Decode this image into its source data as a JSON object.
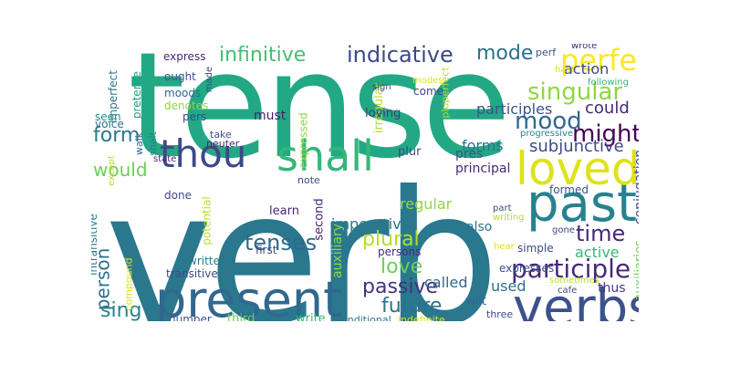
{
  "words": [
    {
      "text": "verb",
      "color": "#2a788e"
    },
    {
      "text": "tense",
      "color": "#22a884"
    },
    {
      "text": "present",
      "color": "#31688e"
    },
    {
      "text": "verbs",
      "color": "#3b528b"
    },
    {
      "text": "past",
      "color": "#26828e"
    },
    {
      "text": "loved",
      "color": "#dde318"
    },
    {
      "text": "thou",
      "color": "#3e4989"
    },
    {
      "text": "shall",
      "color": "#35b779"
    },
    {
      "text": "participle",
      "color": "#482878"
    },
    {
      "text": "perfect",
      "color": "#fde725"
    },
    {
      "text": "infinitive",
      "color": "#43bf71"
    },
    {
      "text": "indicative",
      "color": "#3e4989"
    },
    {
      "text": "singular",
      "color": "#90d743"
    },
    {
      "text": "mood",
      "color": "#31688e"
    },
    {
      "text": "mode",
      "color": "#2d708e"
    },
    {
      "text": "form",
      "color": "#2a788e"
    },
    {
      "text": "might",
      "color": "#440154"
    },
    {
      "text": "could",
      "color": "#482878"
    },
    {
      "text": "would",
      "color": "#6ece58"
    },
    {
      "text": "subjunctive",
      "color": "#3e4989"
    },
    {
      "text": "time",
      "color": "#482878"
    },
    {
      "text": "tenses",
      "color": "#31688e"
    },
    {
      "text": "plural",
      "color": "#b5de2b"
    },
    {
      "text": "love",
      "color": "#6ece58"
    },
    {
      "text": "passive",
      "color": "#46327e"
    },
    {
      "text": "future",
      "color": "#2d708e"
    },
    {
      "text": "person",
      "color": "#2d708e"
    },
    {
      "text": "sing",
      "color": "#25848e"
    },
    {
      "text": "imperative",
      "color": "#2a788e"
    },
    {
      "text": "regular",
      "color": "#90d743"
    },
    {
      "text": "forms",
      "color": "#2c728e"
    },
    {
      "text": "pres",
      "color": "#3b528b"
    },
    {
      "text": "principal",
      "color": "#482878"
    },
    {
      "text": "action",
      "color": "#3e4989"
    },
    {
      "text": "active",
      "color": "#35b779"
    },
    {
      "text": "participles",
      "color": "#3b528b"
    },
    {
      "text": "conjugation",
      "color": "#3e4989"
    },
    {
      "text": "used",
      "color": "#2d708e"
    },
    {
      "text": "thus",
      "color": "#443983"
    },
    {
      "text": "called",
      "color": "#31688e"
    },
    {
      "text": "also",
      "color": "#2c728e"
    },
    {
      "text": "auxiliary",
      "color": "#90d743"
    },
    {
      "text": "auxiliaries",
      "color": "#6ece58"
    },
    {
      "text": "second",
      "color": "#482878"
    },
    {
      "text": "irregular",
      "color": "#b5de2b"
    },
    {
      "text": "expressed",
      "color": "#90d743"
    },
    {
      "text": "imperfect",
      "color": "#2a788e"
    },
    {
      "text": "preterite",
      "color": "#1fa088"
    },
    {
      "text": "express",
      "color": "#482878"
    },
    {
      "text": "ought",
      "color": "#3b528b"
    },
    {
      "text": "moods",
      "color": "#31688e"
    },
    {
      "text": "denotes",
      "color": "#90d743"
    },
    {
      "text": "pers",
      "color": "#3e4989"
    },
    {
      "text": "must",
      "color": "#481f70"
    },
    {
      "text": "loving",
      "color": "#443983"
    },
    {
      "text": "come",
      "color": "#3e4989"
    },
    {
      "text": "voice",
      "color": "#2c728e"
    },
    {
      "text": "seen",
      "color": "#21918c"
    },
    {
      "text": "neuter",
      "color": "#482878"
    },
    {
      "text": "take",
      "color": "#3b528b"
    },
    {
      "text": "walk",
      "color": "#31688e"
    },
    {
      "text": "shalt",
      "color": "#26828e"
    },
    {
      "text": "made",
      "color": "#3e4989"
    },
    {
      "text": "state",
      "color": "#482878"
    },
    {
      "text": "except",
      "color": "#b5de2b"
    },
    {
      "text": "done",
      "color": "#3e4989"
    },
    {
      "text": "potential",
      "color": "#b5de2b"
    },
    {
      "text": "learn",
      "color": "#482878"
    },
    {
      "text": "first",
      "color": "#3e4989"
    },
    {
      "text": "written",
      "color": "#2a788e"
    },
    {
      "text": "transitive",
      "color": "#3e4989"
    },
    {
      "text": "number",
      "color": "#3b528b"
    },
    {
      "text": "third",
      "color": "#6ece58"
    },
    {
      "text": "write",
      "color": "#35b779"
    },
    {
      "text": "conditional",
      "color": "#2c728e"
    },
    {
      "text": "indefinite",
      "color": "#dde318"
    },
    {
      "text": "intransitive",
      "color": "#2a788e"
    },
    {
      "text": "compound",
      "color": "#dde318"
    },
    {
      "text": "note",
      "color": "#3e4989"
    },
    {
      "text": "persons",
      "color": "#482878"
    },
    {
      "text": "plur",
      "color": "#3e4989"
    },
    {
      "text": "wilt",
      "color": "#31688e"
    },
    {
      "text": "three",
      "color": "#3e4989"
    },
    {
      "text": "formed",
      "color": "#3b528b"
    },
    {
      "text": "expresses",
      "color": "#3b528b"
    },
    {
      "text": "progressive",
      "color": "#26828e"
    },
    {
      "text": "pluperfect",
      "color": "#b5de2b"
    },
    {
      "text": "perf",
      "color": "#3b528b"
    },
    {
      "text": "wrote",
      "color": "#482878"
    },
    {
      "text": "hast",
      "color": "#dde318"
    },
    {
      "text": "following",
      "color": "#35b779"
    },
    {
      "text": "sign",
      "color": "#3e4989"
    },
    {
      "text": "modes",
      "color": "#dde318"
    },
    {
      "text": "part",
      "color": "#3e4989"
    },
    {
      "text": "writing",
      "color": "#b5de2b"
    },
    {
      "text": "hear",
      "color": "#dde318"
    },
    {
      "text": "gone",
      "color": "#3e4989"
    },
    {
      "text": "sometimes",
      "color": "#b5de2b"
    },
    {
      "text": "cafe",
      "color": "#3e4989"
    },
    {
      "text": "simple",
      "color": "#3e4989"
    }
  ]
}
